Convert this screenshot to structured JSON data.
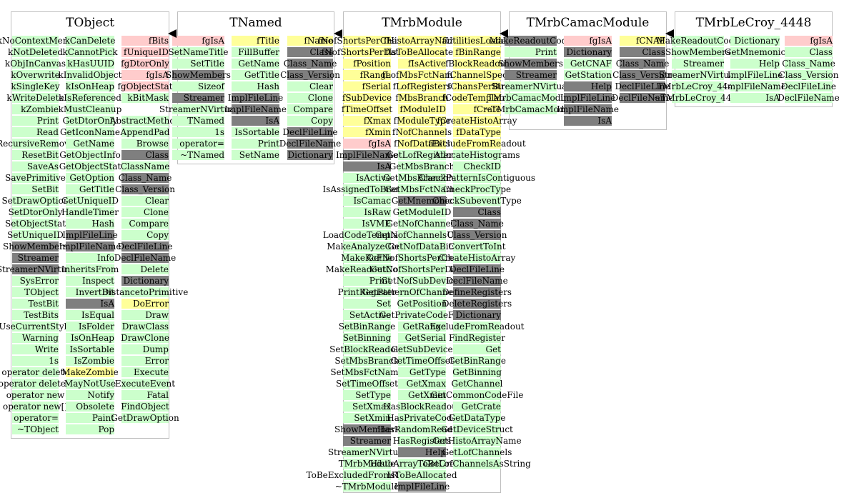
{
  "classes": [
    {
      "name": "TObject",
      "columns": [
        [
          "kNoContextMenu",
          "kNotDeleted",
          "kObjInCanvas",
          "kOverwrite",
          "kSingleKey",
          "kWriteDelete",
          "kZombie",
          "Print",
          "Read",
          "RecursiveRemove",
          "ResetBit",
          "SaveAs",
          "SavePrimitive",
          "SetBit",
          "SetDrawOption",
          "SetDtorOnly",
          "SetObjectStat",
          "SetUniqueID",
          "ShowMembers",
          "Streamer",
          "StreamerNVirtual",
          "SysError",
          "TObject",
          "TestBit",
          "TestBits",
          "UseCurrentStyle",
          "Warning",
          "Write",
          "1s",
          "operator delete",
          "operator delete[]",
          "operator new",
          "operator new[]",
          "operator=",
          "~TObject"
        ],
        [
          "kCanDelete",
          "kCannotPick",
          "kHasUUID",
          "kInvalidObject",
          "kIsOnHeap",
          "kIsReferenced",
          "kMustCleanup",
          "GetDtorOnly",
          "GetIconName",
          "GetName",
          "GetObjectInfo",
          "GetObjectStat",
          "GetOption",
          "GetTitle",
          "GetUniqueID",
          "HandleTimer",
          "Hash",
          "ImplFileLine",
          "ImplFileName",
          "Info",
          "InheritsFrom",
          "Inspect",
          "InvertBit",
          "IsA",
          "IsEqual",
          "IsFolder",
          "IsOnHeap",
          "IsSortable",
          "IsZombie",
          "MakeZombie",
          "MayNotUse",
          "Notify",
          "Obsolete",
          "Paint",
          "Pop"
        ],
        [
          "fBits",
          "fUniqueID",
          "fgDtorOnly",
          "fgIsA",
          "fgObjectStat",
          "kBitMask",
          "",
          "AbstractMethod",
          "AppendPad",
          "Browse",
          "Class",
          "ClassName",
          "Class_Name",
          "Class_Version",
          "Clear",
          "Clone",
          "Compare",
          "Copy",
          "DeclFileLine",
          "DeclFileName",
          "Delete",
          "Dictionary",
          "DistancetoPrimitive",
          "DoError",
          "Draw",
          "DrawClass",
          "DrawClone",
          "Dump",
          "Error",
          "Execute",
          "ExecuteEvent",
          "Fatal",
          "FindObject",
          "GetDrawOption"
        ]
      ]
    },
    {
      "name": "TNamed",
      "columns": [
        [
          "fgIsA",
          "SetNameTitle",
          "SetTitle",
          "ShowMembers",
          "Sizeof",
          "Streamer",
          "StreamerNVirtual",
          "TNamed",
          "1s",
          "operator=",
          "~TNamed"
        ],
        [
          "fTitle",
          "FillBuffer",
          "GetName",
          "GetTitle",
          "Hash",
          "ImplFileLine",
          "ImplFileName",
          "IsA",
          "IsSortable",
          "Print",
          "SetName"
        ],
        [
          "fName",
          "Class",
          "Class_Name",
          "Class_Version",
          "Clear",
          "Clone",
          "Compare",
          "Copy",
          "DeclFileLine",
          "DeclFileName",
          "Dictionary"
        ]
      ]
    },
    {
      "name": "TMrbModule",
      "columns": [
        [
          "fNofShortsPerChannel",
          "fNofShortsPerDatum",
          "fPosition",
          "fRange",
          "fSerial",
          "fSubDevice",
          "fTimeOffset",
          "fXmax",
          "fXmin",
          "fgIsA",
          "ImplFileName",
          "IsA",
          "IsActive",
          "IsAssignedToBranch",
          "IsCamac",
          "IsRaw",
          "IsVME",
          "LoadCodeTemplates",
          "MakeAnalyzeCode",
          "MakeRcFile",
          "MakeReadoutCode",
          "Print",
          "PrintRegister",
          "Set",
          "SetActive",
          "SetBinRange",
          "SetBinning",
          "SetBlockReadout",
          "SetMbsBranch",
          "SetMbsFctName",
          "SetTimeOffset",
          "SetType",
          "SetXmax",
          "SetXmin",
          "ShowMembers",
          "Streamer",
          "StreamerNVirtual",
          "TMrbModule",
          "ToBeExcludedFromReadout",
          "~TMrbModule"
        ],
        [
          "fHistoArrayName",
          "fIsToBeAllocated",
          "fIsActive",
          "fLofMbsFctNames",
          "fLofRegisters",
          "fMbsBranch",
          "fModuleID",
          "fModuleType",
          "fNofChannels",
          "fNofDataBits",
          "GetLofRegisters",
          "GetMbsBranch",
          "GetMbsBranchNo",
          "GetMbsFctName",
          "GetMnemonic",
          "GetModuleID",
          "GetNofChannels",
          "GetNofChannelsUsed",
          "GetNofDataBits",
          "GetNofShortsPerChannel",
          "GetNofShortsPerDatum",
          "GetNofSubDevices",
          "GetPatternOfChannelsUsed",
          "GetPosition",
          "GetPrivateCodeFile",
          "GetRange",
          "GetSerial",
          "GetSubDevice",
          "GetTimeOffset",
          "GetType",
          "GetXmax",
          "GetXmin",
          "HasBlockReadout",
          "HasPrivateCode",
          "HasRandomReadout",
          "HasRegisters",
          "Help",
          "HistoArrayToBeCreated",
          "IsToBeAllocated",
          "ImplFileLine"
        ],
        [
          "fUtilitiesLoaded",
          "fBinRange",
          "fBlockReadout",
          "fChannelSpec",
          "fChansPerBin",
          "fCodeTemplates",
          "fCrate",
          "fCreateHistoArray",
          "fDataType",
          "fExcludeFromReadout",
          "AllocateHistograms",
          "CheckID",
          "CheckPatternIsContiguous",
          "CheckProcType",
          "CheckSubeventType",
          "Class",
          "Class_Name",
          "Class_Version",
          "ConvertToInt",
          "CreateHistoArray",
          "DeclFileLine",
          "DeclFileName",
          "DefineRegisters",
          "DeleteRegisters",
          "Dictionary",
          "ExcludeFromReadout",
          "FindRegister",
          "Get",
          "GetBinRange",
          "GetBinning",
          "GetChannel",
          "GetCommonCodeFile",
          "GetCrate",
          "GetDataType",
          "GetDeviceStruct",
          "GetHistoArrayName",
          "GetLofChannels",
          "GetLofChannelsAsString"
        ]
      ]
    },
    {
      "name": "TMrbCamacModule",
      "columns": [
        [
          "MakeReadoutCode",
          "Print",
          "ShowMembers",
          "Streamer",
          "StreamerNVirtual",
          "TMrbCamacModule",
          "~TMrbCamacModule"
        ],
        [
          "fgIsA",
          "Dictionary",
          "GetCNAF",
          "GetStation",
          "Help",
          "ImplFileLine",
          "ImplFileName",
          "IsA"
        ],
        [
          "fCNAF",
          "Class",
          "Class_Name",
          "Class_Version",
          "DeclFileLine",
          "DeclFileName"
        ]
      ]
    },
    {
      "name": "TMrbLeCroy_4448",
      "columns": [
        [
          "MakeReadoutCode",
          "ShowMembers",
          "Streamer",
          "StreamerNVirtual",
          "TMrbLeCroy_4448",
          "~TMrbLeCroy_4448"
        ],
        [
          "Dictionary",
          "GetMnemonic",
          "Help",
          "ImplFileLine",
          "ImplFileName",
          "IsA"
        ],
        [
          "fgIsA",
          "Class",
          "Class_Name",
          "Class_Version",
          "DeclFileLine",
          "DeclFileName"
        ]
      ]
    }
  ],
  "colors": {
    "method": "#ccffcc",
    "inherited": "#7f7f7f",
    "static_member": "#ffcccc",
    "data_member": "#ffff99",
    "border": "#bfbfbf",
    "arrow": "#000000"
  }
}
